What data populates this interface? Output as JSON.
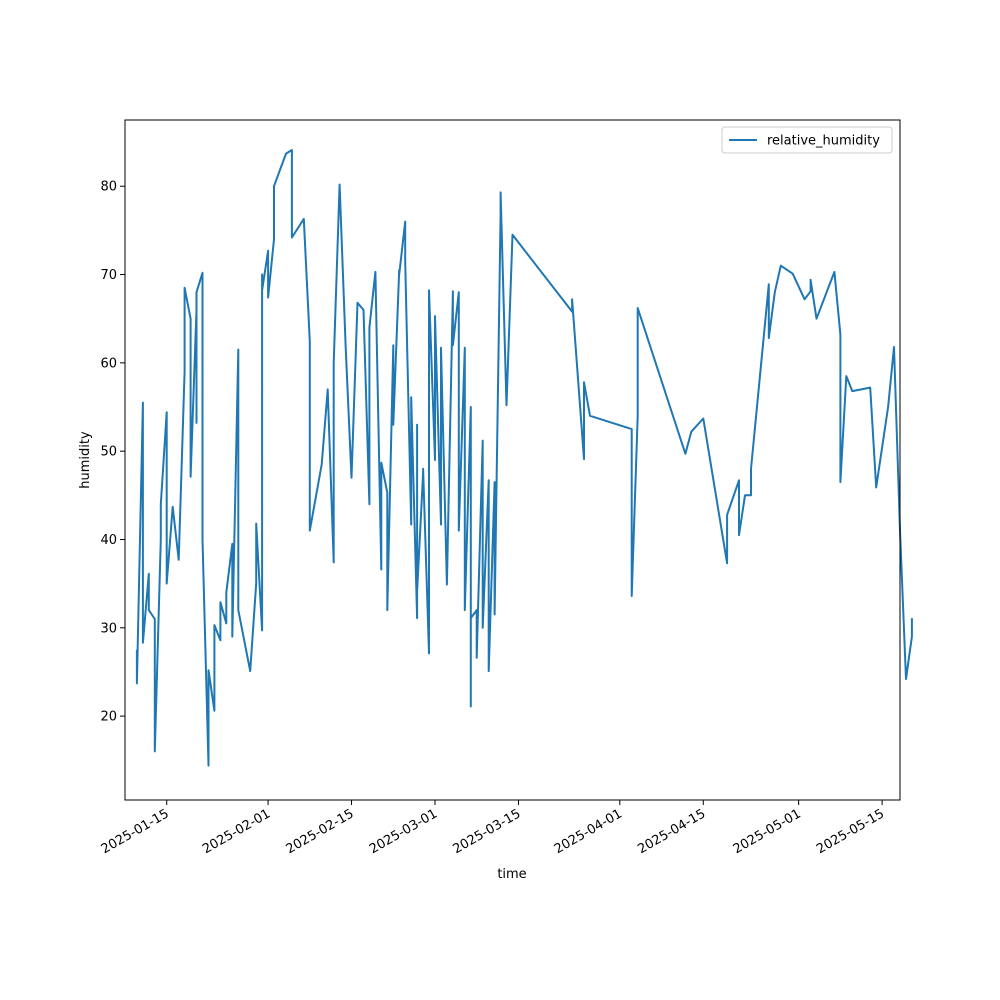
{
  "chart_data": {
    "type": "line",
    "xlabel": "time",
    "ylabel": "humidity",
    "x_axis_type": "date",
    "xlim": [
      "2025-01-08",
      "2025-05-18"
    ],
    "ylim": [
      10.5,
      87.5
    ],
    "x_ticks": [
      "2025-01-15",
      "2025-02-01",
      "2025-02-15",
      "2025-03-01",
      "2025-03-15",
      "2025-04-01",
      "2025-04-15",
      "2025-05-01",
      "2025-05-15"
    ],
    "y_ticks": [
      20,
      30,
      40,
      50,
      60,
      70,
      80
    ],
    "grid": false,
    "legend_position": "top-right",
    "colors": {
      "series": "#1f77b4"
    },
    "series": [
      {
        "name": "relative_humidity",
        "points": [
          [
            "2025-01-10",
            27.5
          ],
          [
            "2025-01-10",
            23.7
          ],
          [
            "2025-01-11",
            55.5
          ],
          [
            "2025-01-11",
            28.3
          ],
          [
            "2025-01-12",
            36.1
          ],
          [
            "2025-01-12",
            32.0
          ],
          [
            "2025-01-13",
            31.0
          ],
          [
            "2025-01-13",
            16.0
          ],
          [
            "2025-01-14",
            40.0
          ],
          [
            "2025-01-14",
            44.0
          ],
          [
            "2025-01-15",
            54.4
          ],
          [
            "2025-01-15",
            35.0
          ],
          [
            "2025-01-16",
            43.7
          ],
          [
            "2025-01-17",
            37.7
          ],
          [
            "2025-01-18",
            59.0
          ],
          [
            "2025-01-18",
            68.5
          ],
          [
            "2025-01-19",
            65.0
          ],
          [
            "2025-01-19",
            47.1
          ],
          [
            "2025-01-20",
            66.0
          ],
          [
            "2025-01-20",
            53.2
          ],
          [
            "2025-01-20",
            68.0
          ],
          [
            "2025-01-21",
            70.2
          ],
          [
            "2025-01-21",
            40.0
          ],
          [
            "2025-01-22",
            14.4
          ],
          [
            "2025-01-22",
            25.2
          ],
          [
            "2025-01-23",
            20.6
          ],
          [
            "2025-01-23",
            30.3
          ],
          [
            "2025-01-24",
            28.6
          ],
          [
            "2025-01-24",
            32.9
          ],
          [
            "2025-01-25",
            30.5
          ],
          [
            "2025-01-25",
            34.0
          ],
          [
            "2025-01-26",
            39.5
          ],
          [
            "2025-01-26",
            29.0
          ],
          [
            "2025-01-27",
            61.5
          ],
          [
            "2025-01-27",
            32.0
          ],
          [
            "2025-01-29",
            25.1
          ],
          [
            "2025-01-30",
            35.0
          ],
          [
            "2025-01-30",
            40.0
          ],
          [
            "2025-01-30",
            41.8
          ],
          [
            "2025-01-31",
            29.7
          ],
          [
            "2025-01-31",
            67.0
          ],
          [
            "2025-01-31",
            70.0
          ],
          [
            "2025-01-31",
            68.2
          ],
          [
            "2025-02-01",
            72.7
          ],
          [
            "2025-02-01",
            69.5
          ],
          [
            "2025-02-01",
            67.4
          ],
          [
            "2025-02-02",
            74.0
          ],
          [
            "2025-02-02",
            80.0
          ],
          [
            "2025-02-04",
            83.7
          ],
          [
            "2025-02-05",
            84.1
          ],
          [
            "2025-02-05",
            81.6
          ],
          [
            "2025-02-05",
            74.2
          ],
          [
            "2025-02-07",
            76.3
          ],
          [
            "2025-02-08",
            62.4
          ],
          [
            "2025-02-08",
            41.0
          ],
          [
            "2025-02-10",
            48.5
          ],
          [
            "2025-02-11",
            57.0
          ],
          [
            "2025-02-11",
            57.0
          ],
          [
            "2025-02-12",
            37.4
          ],
          [
            "2025-02-12",
            60.0
          ],
          [
            "2025-02-13",
            80.2
          ],
          [
            "2025-02-14",
            62.0
          ],
          [
            "2025-02-15",
            47.0
          ],
          [
            "2025-02-16",
            66.8
          ],
          [
            "2025-02-17",
            66.0
          ],
          [
            "2025-02-18",
            44.0
          ],
          [
            "2025-02-18",
            64.0
          ],
          [
            "2025-02-19",
            70.3
          ],
          [
            "2025-02-20",
            36.6
          ],
          [
            "2025-02-20",
            48.7
          ],
          [
            "2025-02-21",
            45.3
          ],
          [
            "2025-02-21",
            32.0
          ],
          [
            "2025-02-22",
            62.0
          ],
          [
            "2025-02-22",
            53.0
          ],
          [
            "2025-02-23",
            70.5
          ],
          [
            "2025-02-23",
            70.0
          ],
          [
            "2025-02-24",
            76.0
          ],
          [
            "2025-02-24",
            71.5
          ],
          [
            "2025-02-25",
            41.7
          ],
          [
            "2025-02-25",
            56.1
          ],
          [
            "2025-02-26",
            31.1
          ],
          [
            "2025-02-26",
            53.0
          ],
          [
            "2025-02-26",
            34.1
          ],
          [
            "2025-02-27",
            47.5
          ],
          [
            "2025-02-27",
            48.0
          ],
          [
            "2025-02-28",
            27.1
          ],
          [
            "2025-02-28",
            68.2
          ],
          [
            "2025-03-01",
            49.0
          ],
          [
            "2025-03-01",
            65.3
          ],
          [
            "2025-03-02",
            41.7
          ],
          [
            "2025-03-02",
            61.7
          ],
          [
            "2025-03-03",
            34.9
          ],
          [
            "2025-03-04",
            68.1
          ],
          [
            "2025-03-04",
            62.0
          ],
          [
            "2025-03-05",
            68.0
          ],
          [
            "2025-03-05",
            41.0
          ],
          [
            "2025-03-06",
            61.7
          ],
          [
            "2025-03-06",
            32.0
          ],
          [
            "2025-03-07",
            55.0
          ],
          [
            "2025-03-07",
            21.1
          ],
          [
            "2025-03-07",
            31.1
          ],
          [
            "2025-03-08",
            32.0
          ],
          [
            "2025-03-08",
            26.6
          ],
          [
            "2025-03-09",
            51.2
          ],
          [
            "2025-03-09",
            30.0
          ],
          [
            "2025-03-10",
            46.7
          ],
          [
            "2025-03-10",
            25.1
          ],
          [
            "2025-03-11",
            46.5
          ],
          [
            "2025-03-11",
            31.5
          ],
          [
            "2025-03-12",
            76.9
          ],
          [
            "2025-03-12",
            79.3
          ],
          [
            "2025-03-13",
            55.2
          ],
          [
            "2025-03-14",
            74.5
          ],
          [
            "2025-03-24",
            65.8
          ],
          [
            "2025-03-24",
            67.2
          ],
          [
            "2025-03-26",
            49.1
          ],
          [
            "2025-03-26",
            57.8
          ],
          [
            "2025-03-27",
            54.0
          ],
          [
            "2025-04-03",
            52.5
          ],
          [
            "2025-04-03",
            33.6
          ],
          [
            "2025-04-04",
            54.0
          ],
          [
            "2025-04-04",
            66.2
          ],
          [
            "2025-04-12",
            49.7
          ],
          [
            "2025-04-13",
            52.2
          ],
          [
            "2025-04-15",
            53.7
          ],
          [
            "2025-04-19",
            37.3
          ],
          [
            "2025-04-19",
            42.8
          ],
          [
            "2025-04-21",
            46.7
          ],
          [
            "2025-04-21",
            40.5
          ],
          [
            "2025-04-22",
            45.0
          ],
          [
            "2025-04-23",
            45.0
          ],
          [
            "2025-04-23",
            48.0
          ],
          [
            "2025-04-26",
            68.9
          ],
          [
            "2025-04-26",
            62.8
          ],
          [
            "2025-04-27",
            68.0
          ],
          [
            "2025-04-28",
            71.0
          ],
          [
            "2025-04-30",
            70.1
          ],
          [
            "2025-05-02",
            67.2
          ],
          [
            "2025-05-03",
            68.1
          ],
          [
            "2025-05-03",
            69.4
          ],
          [
            "2025-05-04",
            65.0
          ],
          [
            "2025-05-07",
            70.3
          ],
          [
            "2025-05-08",
            63.2
          ],
          [
            "2025-05-08",
            46.5
          ],
          [
            "2025-05-09",
            58.5
          ],
          [
            "2025-05-10",
            56.8
          ],
          [
            "2025-05-13",
            57.2
          ],
          [
            "2025-05-14",
            45.9
          ],
          [
            "2025-05-16",
            55.0
          ],
          [
            "2025-05-17",
            61.8
          ],
          [
            "2025-05-18",
            41.0
          ],
          [
            "2025-05-19",
            24.2
          ],
          [
            "2025-05-20",
            29.0
          ],
          [
            "2025-05-20",
            31.1
          ]
        ]
      }
    ]
  }
}
